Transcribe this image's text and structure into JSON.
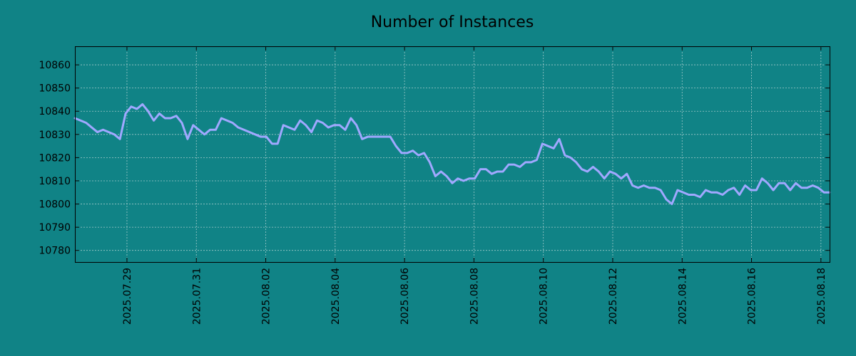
{
  "chart_data": {
    "type": "line",
    "title": "Number of Instances",
    "xlabel": "",
    "ylabel": "",
    "x_start": "2025.07.27 12:00",
    "x_end": "2025.08.18 06:00",
    "xlim": [
      "2025.07.27 12:00",
      "2025.08.18 06:00"
    ],
    "ylim": [
      10775,
      10868
    ],
    "y_ticks": [
      10780,
      10790,
      10800,
      10810,
      10820,
      10830,
      10840,
      10850,
      10860
    ],
    "x_ticks": [
      "2025.07.29",
      "2025.07.31",
      "2025.08.02",
      "2025.08.04",
      "2025.08.06",
      "2025.08.08",
      "2025.08.10",
      "2025.08.12",
      "2025.08.14",
      "2025.08.16",
      "2025.08.18"
    ],
    "grid": true,
    "line_color": "#a0a8ff",
    "series": [
      {
        "values": [
          10837,
          10836,
          10835,
          10833,
          10831,
          10832,
          10831,
          10830,
          10828,
          10839,
          10842,
          10841,
          10843,
          10840,
          10836,
          10839,
          10837,
          10837,
          10838,
          10835,
          10828,
          10834,
          10832,
          10830,
          10832,
          10832,
          10837,
          10836,
          10835,
          10833,
          10832,
          10831,
          10830,
          10829,
          10829,
          10826,
          10826,
          10834,
          10833,
          10832,
          10836,
          10834,
          10831,
          10836,
          10835,
          10833,
          10834,
          10834,
          10832,
          10837,
          10834,
          10828,
          10829,
          10829,
          10829,
          10829,
          10829,
          10825,
          10822,
          10822,
          10823,
          10821,
          10822,
          10818,
          10812,
          10814,
          10812,
          10809,
          10811,
          10810,
          10811,
          10811,
          10815,
          10815,
          10813,
          10814,
          10814,
          10817,
          10817,
          10816,
          10818,
          10818,
          10819,
          10826,
          10825,
          10824,
          10828,
          10821,
          10820,
          10818,
          10815,
          10814,
          10816,
          10814,
          10811,
          10814,
          10813,
          10811,
          10813,
          10808,
          10807,
          10808,
          10807,
          10807,
          10806,
          10802,
          10800,
          10806,
          10805,
          10804,
          10804,
          10803,
          10806,
          10805,
          10805,
          10804,
          10806,
          10807,
          10804,
          10808,
          10806,
          10806,
          10811,
          10809,
          10806,
          10809,
          10809,
          10806,
          10809,
          10807,
          10807,
          10808,
          10807,
          10805,
          10805
        ]
      }
    ]
  }
}
